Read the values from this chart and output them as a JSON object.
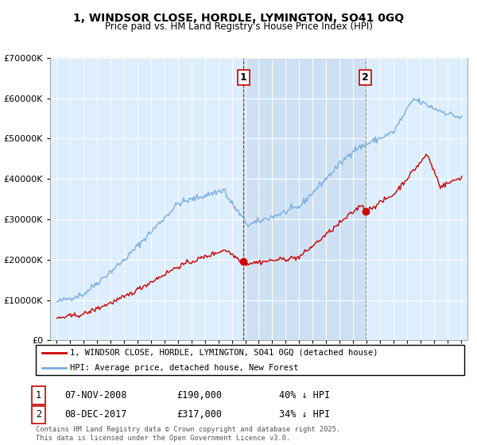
{
  "title_line1": "1, WINDSOR CLOSE, HORDLE, LYMINGTON, SO41 0GQ",
  "title_line2": "Price paid vs. HM Land Registry's House Price Index (HPI)",
  "legend_red": "1, WINDSOR CLOSE, HORDLE, LYMINGTON, SO41 0GQ (detached house)",
  "legend_blue": "HPI: Average price, detached house, New Forest",
  "transaction1_date": "07-NOV-2008",
  "transaction1_price": "£190,000",
  "transaction1_note": "40% ↓ HPI",
  "transaction2_date": "08-DEC-2017",
  "transaction2_price": "£317,000",
  "transaction2_note": "34% ↓ HPI",
  "vline1_x": 2008.85,
  "vline2_x": 2017.92,
  "red_color": "#cc0000",
  "blue_color": "#7aade0",
  "shade_color": "#ddeeff",
  "plot_bg": "#ddeeff",
  "footer": "Contains HM Land Registry data © Crown copyright and database right 2025.\nThis data is licensed under the Open Government Licence v3.0.",
  "ylim_min": 0,
  "ylim_max": 700000,
  "xlim_min": 1994.5,
  "xlim_max": 2025.5
}
